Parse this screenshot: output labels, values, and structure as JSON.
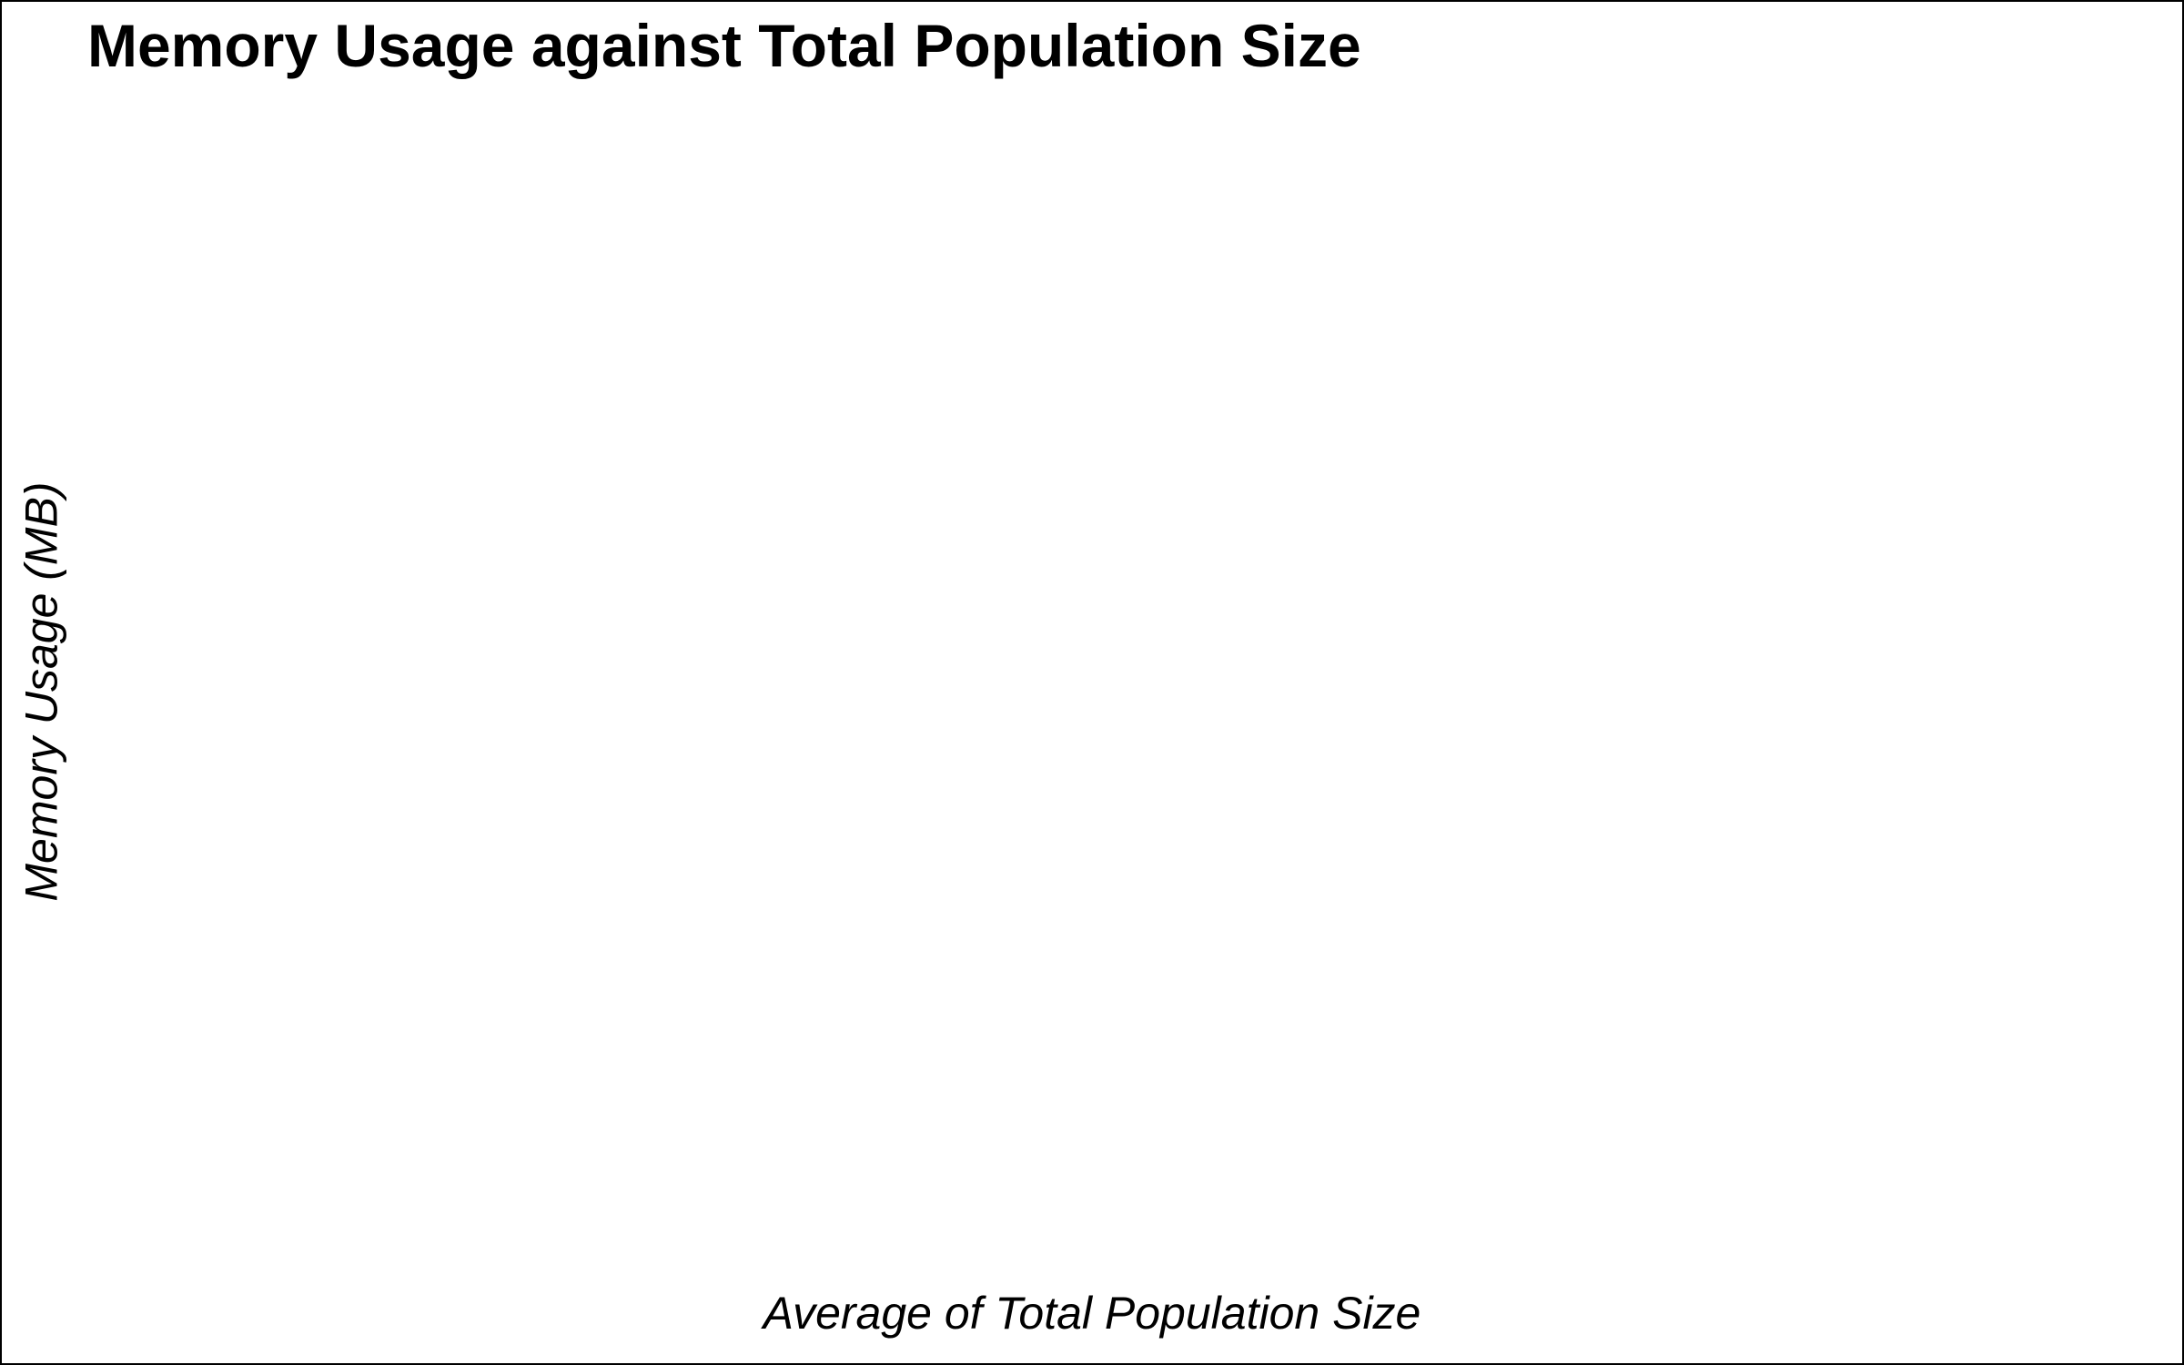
{
  "chart_data": {
    "type": "scatter",
    "title": "Memory Usage against Total Population Size",
    "xlabel": "Average of Total Population Size",
    "ylabel": "Memory Usage (MB)",
    "series": [],
    "grid": false,
    "legend": "none"
  }
}
